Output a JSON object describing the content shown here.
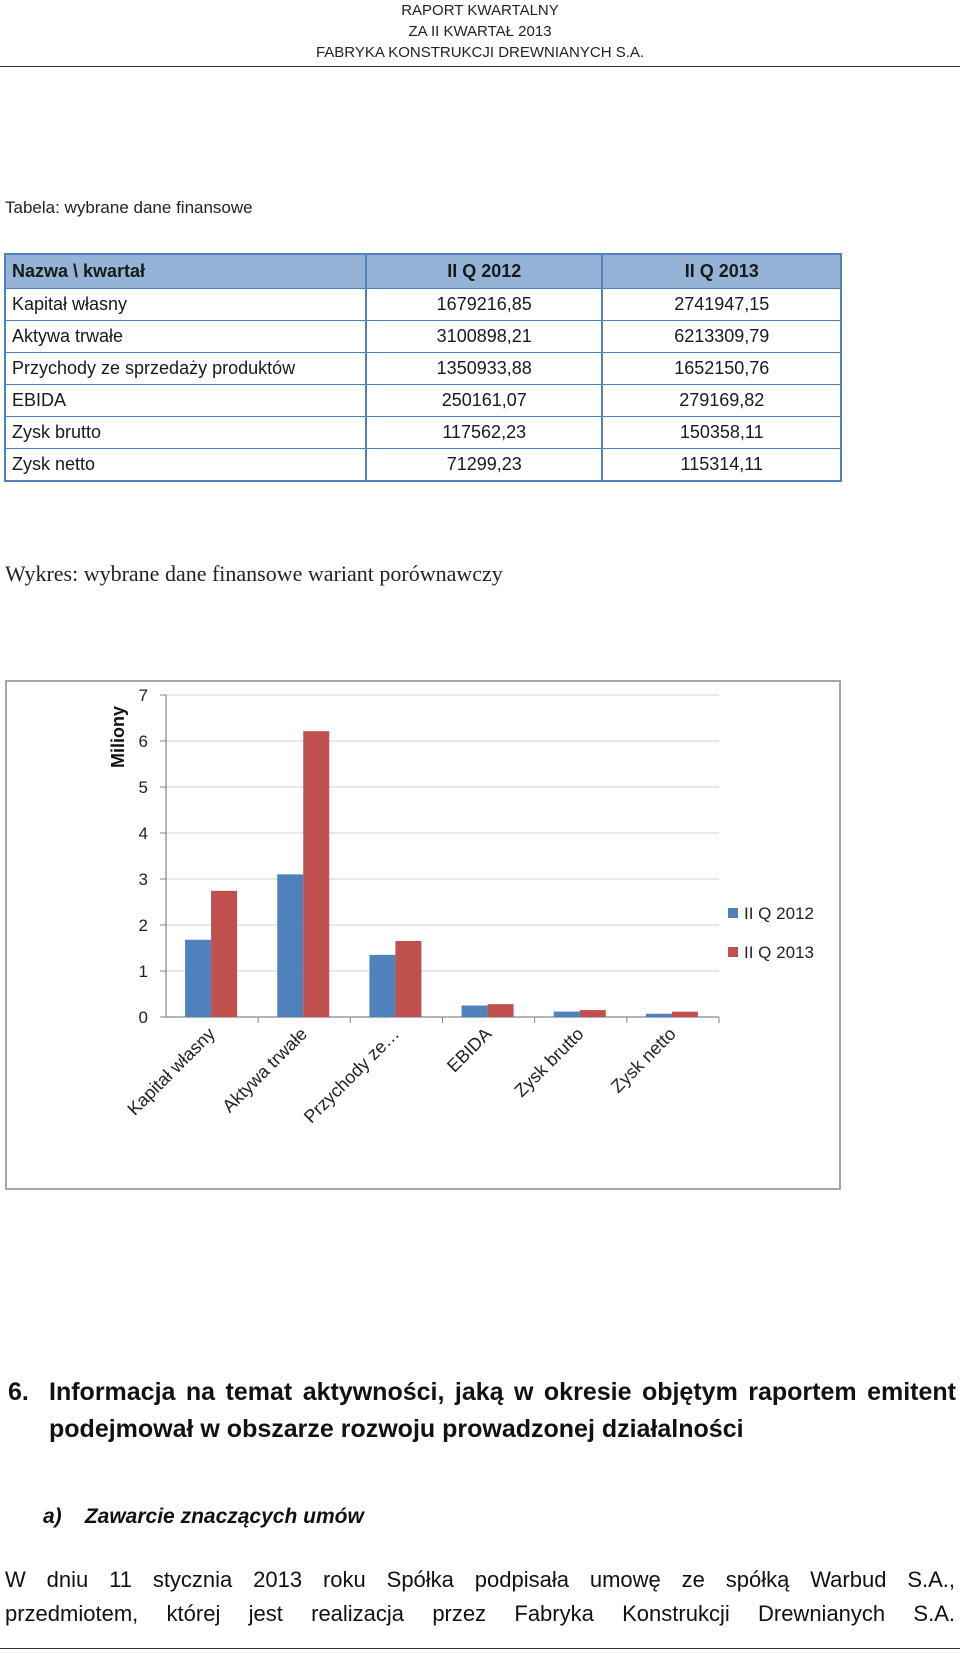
{
  "header": {
    "line1": "RAPORT KWARTALNY",
    "line2": "ZA II KWARTAŁ 2013",
    "line3": "FABRYKA KONSTRUKCJI DREWNIANYCH S.A."
  },
  "table_caption": "Tabela: wybrane dane finansowe",
  "table": {
    "headers": [
      "Nazwa \\ kwartał",
      "II Q 2012",
      "II Q 2013"
    ],
    "rows": [
      [
        "Kapitał własny",
        "1679216,85",
        "2741947,15"
      ],
      [
        "Aktywa trwałe",
        "3100898,21",
        "6213309,79"
      ],
      [
        "Przychody ze sprzedaży produktów",
        "1350933,88",
        "1652150,76"
      ],
      [
        "EBIDA",
        "250161,07",
        "279169,82"
      ],
      [
        "Zysk brutto",
        "117562,23",
        "150358,11"
      ],
      [
        "Zysk netto",
        "71299,23",
        "115314,11"
      ]
    ]
  },
  "chart_caption": "Wykres: wybrane dane finansowe wariant porównawczy",
  "chart_data": {
    "type": "bar",
    "categories": [
      "Kapitał własny",
      "Aktywa trwałe",
      "Przychody ze…",
      "EBIDA",
      "Zysk brutto",
      "Zysk netto"
    ],
    "series": [
      {
        "name": "II Q 2012",
        "color": "#4f81bd",
        "values": [
          1.679,
          3.101,
          1.351,
          0.25,
          0.118,
          0.071
        ]
      },
      {
        "name": "II Q 2013",
        "color": "#c0504d",
        "values": [
          2.742,
          6.213,
          1.652,
          0.279,
          0.15,
          0.115
        ]
      }
    ],
    "ylabel": "Miliony",
    "ylim": [
      0,
      7
    ],
    "yticks": [
      "0",
      "1",
      "2",
      "3",
      "4",
      "5",
      "6",
      "7"
    ],
    "grid": true,
    "legend": "right"
  },
  "section": {
    "number": "6.",
    "title": "Informacja na temat aktywności, jaką w okresie objętym raportem emitent podejmował w obszarze rozwoju prowadzonej działalności"
  },
  "subsection": {
    "label": "a)",
    "title": "Zawarcie znaczących umów"
  },
  "body": {
    "line1": "W dniu 11 stycznia 2013 roku Spółka podpisała umowę ze spółką Warbud S.A.,",
    "line2": "przedmiotem, której jest realizacja przez Fabryka Konstrukcji Drewnianych S.A."
  }
}
